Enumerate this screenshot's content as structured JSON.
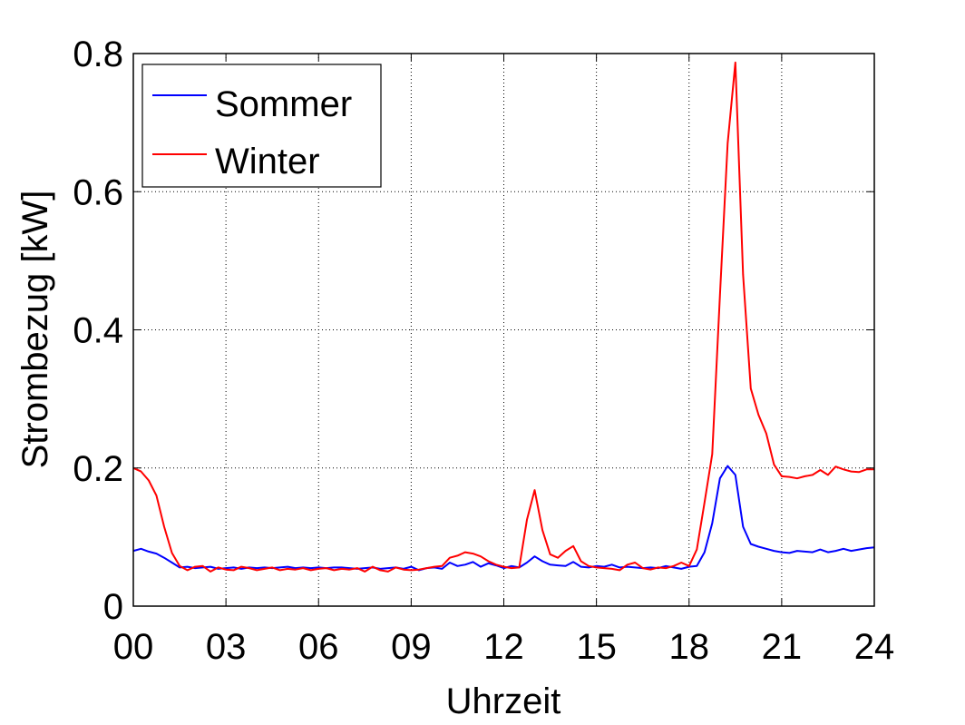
{
  "chart_data": {
    "type": "line",
    "xlabel": "Uhrzeit",
    "ylabel": "Strombezug [kW]",
    "xlim": [
      0,
      24
    ],
    "ylim": [
      0,
      0.8
    ],
    "xticks": [
      0,
      3,
      6,
      9,
      12,
      15,
      18,
      21,
      24
    ],
    "xtick_labels": [
      "00",
      "03",
      "06",
      "09",
      "12",
      "15",
      "18",
      "21",
      "24"
    ],
    "yticks": [
      0,
      0.2,
      0.4,
      0.6,
      0.8
    ],
    "ytick_labels": [
      "0",
      "0.2",
      "0.4",
      "0.6",
      "0.8"
    ],
    "grid": "dotted",
    "legend_position": "top-left",
    "series": [
      {
        "name": "Sommer",
        "color": "#0000ff",
        "points": [
          [
            0.0,
            0.08
          ],
          [
            0.25,
            0.083
          ],
          [
            0.5,
            0.079
          ],
          [
            0.75,
            0.076
          ],
          [
            1.0,
            0.07
          ],
          [
            1.25,
            0.063
          ],
          [
            1.5,
            0.056
          ],
          [
            1.75,
            0.057
          ],
          [
            2.0,
            0.055
          ],
          [
            2.25,
            0.056
          ],
          [
            2.5,
            0.057
          ],
          [
            2.75,
            0.054
          ],
          [
            3.0,
            0.055
          ],
          [
            3.25,
            0.056
          ],
          [
            3.5,
            0.054
          ],
          [
            3.75,
            0.056
          ],
          [
            4.0,
            0.055
          ],
          [
            4.25,
            0.056
          ],
          [
            4.5,
            0.055
          ],
          [
            4.75,
            0.056
          ],
          [
            5.0,
            0.057
          ],
          [
            5.25,
            0.055
          ],
          [
            5.5,
            0.056
          ],
          [
            5.75,
            0.055
          ],
          [
            6.0,
            0.056
          ],
          [
            6.25,
            0.055
          ],
          [
            6.5,
            0.056
          ],
          [
            6.75,
            0.056
          ],
          [
            7.0,
            0.055
          ],
          [
            7.25,
            0.054
          ],
          [
            7.5,
            0.055
          ],
          [
            7.75,
            0.056
          ],
          [
            8.0,
            0.054
          ],
          [
            8.25,
            0.055
          ],
          [
            8.5,
            0.056
          ],
          [
            8.75,
            0.054
          ],
          [
            9.0,
            0.057
          ],
          [
            9.25,
            0.052
          ],
          [
            9.5,
            0.055
          ],
          [
            9.75,
            0.056
          ],
          [
            10.0,
            0.054
          ],
          [
            10.25,
            0.063
          ],
          [
            10.5,
            0.058
          ],
          [
            10.75,
            0.06
          ],
          [
            11.0,
            0.064
          ],
          [
            11.25,
            0.057
          ],
          [
            11.5,
            0.062
          ],
          [
            11.75,
            0.059
          ],
          [
            12.0,
            0.055
          ],
          [
            12.25,
            0.058
          ],
          [
            12.5,
            0.056
          ],
          [
            12.75,
            0.063
          ],
          [
            13.0,
            0.072
          ],
          [
            13.25,
            0.065
          ],
          [
            13.5,
            0.06
          ],
          [
            13.75,
            0.059
          ],
          [
            14.0,
            0.058
          ],
          [
            14.25,
            0.064
          ],
          [
            14.5,
            0.057
          ],
          [
            14.75,
            0.056
          ],
          [
            15.0,
            0.058
          ],
          [
            15.25,
            0.057
          ],
          [
            15.5,
            0.06
          ],
          [
            15.75,
            0.056
          ],
          [
            16.0,
            0.057
          ],
          [
            16.25,
            0.056
          ],
          [
            16.5,
            0.055
          ],
          [
            16.75,
            0.056
          ],
          [
            17.0,
            0.055
          ],
          [
            17.25,
            0.058
          ],
          [
            17.5,
            0.056
          ],
          [
            17.75,
            0.054
          ],
          [
            18.0,
            0.057
          ],
          [
            18.25,
            0.058
          ],
          [
            18.5,
            0.078
          ],
          [
            18.75,
            0.12
          ],
          [
            19.0,
            0.185
          ],
          [
            19.25,
            0.203
          ],
          [
            19.5,
            0.19
          ],
          [
            19.75,
            0.115
          ],
          [
            20.0,
            0.09
          ],
          [
            20.25,
            0.086
          ],
          [
            20.5,
            0.083
          ],
          [
            20.75,
            0.08
          ],
          [
            21.0,
            0.078
          ],
          [
            21.25,
            0.077
          ],
          [
            21.5,
            0.08
          ],
          [
            21.75,
            0.079
          ],
          [
            22.0,
            0.078
          ],
          [
            22.25,
            0.082
          ],
          [
            22.5,
            0.078
          ],
          [
            22.75,
            0.08
          ],
          [
            23.0,
            0.083
          ],
          [
            23.25,
            0.08
          ],
          [
            23.5,
            0.082
          ],
          [
            23.75,
            0.084
          ],
          [
            24.0,
            0.085
          ]
        ]
      },
      {
        "name": "Winter",
        "color": "#ff0000",
        "points": [
          [
            0.0,
            0.2
          ],
          [
            0.25,
            0.195
          ],
          [
            0.5,
            0.182
          ],
          [
            0.75,
            0.16
          ],
          [
            1.0,
            0.115
          ],
          [
            1.25,
            0.077
          ],
          [
            1.5,
            0.058
          ],
          [
            1.75,
            0.052
          ],
          [
            2.0,
            0.057
          ],
          [
            2.25,
            0.058
          ],
          [
            2.5,
            0.05
          ],
          [
            2.75,
            0.056
          ],
          [
            3.0,
            0.053
          ],
          [
            3.25,
            0.052
          ],
          [
            3.5,
            0.057
          ],
          [
            3.75,
            0.055
          ],
          [
            4.0,
            0.052
          ],
          [
            4.25,
            0.054
          ],
          [
            4.5,
            0.056
          ],
          [
            4.75,
            0.052
          ],
          [
            5.0,
            0.054
          ],
          [
            5.25,
            0.053
          ],
          [
            5.5,
            0.055
          ],
          [
            5.75,
            0.052
          ],
          [
            6.0,
            0.054
          ],
          [
            6.25,
            0.055
          ],
          [
            6.5,
            0.052
          ],
          [
            6.75,
            0.054
          ],
          [
            7.0,
            0.053
          ],
          [
            7.25,
            0.055
          ],
          [
            7.5,
            0.05
          ],
          [
            7.75,
            0.057
          ],
          [
            8.0,
            0.052
          ],
          [
            8.25,
            0.05
          ],
          [
            8.5,
            0.056
          ],
          [
            8.75,
            0.053
          ],
          [
            9.0,
            0.052
          ],
          [
            9.25,
            0.053
          ],
          [
            9.5,
            0.055
          ],
          [
            9.75,
            0.057
          ],
          [
            10.0,
            0.058
          ],
          [
            10.25,
            0.07
          ],
          [
            10.5,
            0.073
          ],
          [
            10.75,
            0.078
          ],
          [
            11.0,
            0.076
          ],
          [
            11.25,
            0.072
          ],
          [
            11.5,
            0.065
          ],
          [
            11.75,
            0.06
          ],
          [
            12.0,
            0.057
          ],
          [
            12.25,
            0.055
          ],
          [
            12.5,
            0.056
          ],
          [
            12.75,
            0.125
          ],
          [
            13.0,
            0.168
          ],
          [
            13.25,
            0.11
          ],
          [
            13.5,
            0.075
          ],
          [
            13.75,
            0.07
          ],
          [
            14.0,
            0.08
          ],
          [
            14.25,
            0.087
          ],
          [
            14.5,
            0.065
          ],
          [
            14.75,
            0.058
          ],
          [
            15.0,
            0.056
          ],
          [
            15.25,
            0.055
          ],
          [
            15.5,
            0.054
          ],
          [
            15.75,
            0.052
          ],
          [
            16.0,
            0.06
          ],
          [
            16.25,
            0.063
          ],
          [
            16.5,
            0.055
          ],
          [
            16.75,
            0.053
          ],
          [
            17.0,
            0.056
          ],
          [
            17.25,
            0.055
          ],
          [
            17.5,
            0.058
          ],
          [
            17.75,
            0.063
          ],
          [
            18.0,
            0.058
          ],
          [
            18.25,
            0.082
          ],
          [
            18.5,
            0.15
          ],
          [
            18.75,
            0.22
          ],
          [
            19.0,
            0.45
          ],
          [
            19.25,
            0.67
          ],
          [
            19.5,
            0.787
          ],
          [
            19.75,
            0.48
          ],
          [
            20.0,
            0.315
          ],
          [
            20.25,
            0.277
          ],
          [
            20.5,
            0.25
          ],
          [
            20.75,
            0.205
          ],
          [
            21.0,
            0.188
          ],
          [
            21.25,
            0.187
          ],
          [
            21.5,
            0.185
          ],
          [
            21.75,
            0.188
          ],
          [
            22.0,
            0.19
          ],
          [
            22.25,
            0.197
          ],
          [
            22.5,
            0.19
          ],
          [
            22.75,
            0.202
          ],
          [
            23.0,
            0.198
          ],
          [
            23.25,
            0.195
          ],
          [
            23.5,
            0.194
          ],
          [
            23.75,
            0.198
          ],
          [
            24.0,
            0.198
          ]
        ]
      }
    ]
  }
}
